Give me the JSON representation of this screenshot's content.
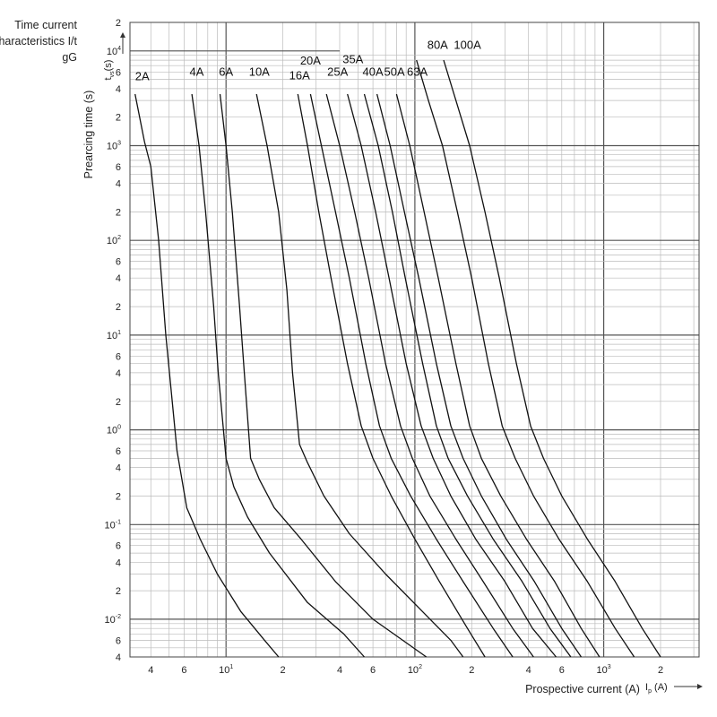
{
  "chart_data": {
    "type": "line",
    "title": [
      "Time current",
      "characteristics I/t",
      "gG"
    ],
    "xlabel": "Prospective current (A)",
    "xunit": "I",
    "xunit_sub": "p",
    "xunit_tail": " (A)",
    "ylabel": "Prearcing time (s)",
    "yunit": "t",
    "yunit_sub": "vs",
    "yunit_tail": "(s)",
    "xscale": "log",
    "yscale": "log",
    "xlim": [
      3.1,
      3200
    ],
    "ylim": [
      0.004,
      20000
    ],
    "grid": true,
    "x_ticks": [
      {
        "v": 4,
        "t": "4"
      },
      {
        "v": 6,
        "t": "6"
      },
      {
        "v": 10,
        "t": "10",
        "e": "1"
      },
      {
        "v": 20,
        "t": "2"
      },
      {
        "v": 40,
        "t": "4"
      },
      {
        "v": 60,
        "t": "6"
      },
      {
        "v": 100,
        "t": "10",
        "e": "2"
      },
      {
        "v": 200,
        "t": "2"
      },
      {
        "v": 400,
        "t": "4"
      },
      {
        "v": 600,
        "t": "6"
      },
      {
        "v": 1000,
        "t": "10",
        "e": "3"
      },
      {
        "v": 2000,
        "t": "2"
      }
    ],
    "y_ticks": [
      {
        "v": 20000,
        "t": "2"
      },
      {
        "v": 10000,
        "t": "10",
        "e": "4"
      },
      {
        "v": 6000,
        "t": "6"
      },
      {
        "v": 4000,
        "t": "4"
      },
      {
        "v": 2000,
        "t": "2"
      },
      {
        "v": 1000,
        "t": "10",
        "e": "3"
      },
      {
        "v": 600,
        "t": "6"
      },
      {
        "v": 400,
        "t": "4"
      },
      {
        "v": 200,
        "t": "2"
      },
      {
        "v": 100,
        "t": "10",
        "e": "2"
      },
      {
        "v": 60,
        "t": "6"
      },
      {
        "v": 40,
        "t": "4"
      },
      {
        "v": 20,
        "t": "2"
      },
      {
        "v": 10,
        "t": "10",
        "e": "1"
      },
      {
        "v": 6,
        "t": "6"
      },
      {
        "v": 4,
        "t": "4"
      },
      {
        "v": 2,
        "t": "2"
      },
      {
        "v": 1,
        "t": "10",
        "e": "0"
      },
      {
        "v": 0.6,
        "t": "6"
      },
      {
        "v": 0.4,
        "t": "4"
      },
      {
        "v": 0.2,
        "t": "2"
      },
      {
        "v": 0.1,
        "t": "10",
        "e": "-1"
      },
      {
        "v": 0.06,
        "t": "6"
      },
      {
        "v": 0.04,
        "t": "4"
      },
      {
        "v": 0.02,
        "t": "2"
      },
      {
        "v": 0.01,
        "t": "10",
        "e": "-2"
      },
      {
        "v": 0.006,
        "t": "6"
      },
      {
        "v": 0.004,
        "t": "4"
      }
    ],
    "series": [
      {
        "name": "2A",
        "points": [
          [
            3.3,
            3500
          ],
          [
            3.7,
            1100
          ],
          [
            4.0,
            600
          ],
          [
            4.4,
            100
          ],
          [
            4.8,
            10
          ],
          [
            5.5,
            0.6
          ],
          [
            6.2,
            0.15
          ],
          [
            7.3,
            0.07
          ],
          [
            9.0,
            0.03
          ],
          [
            12.0,
            0.012
          ],
          [
            16.0,
            0.006
          ],
          [
            19.0,
            0.004
          ]
        ]
      },
      {
        "name": "4A",
        "points": [
          [
            6.6,
            3500
          ],
          [
            7.2,
            1000
          ],
          [
            7.8,
            200
          ],
          [
            8.6,
            20
          ],
          [
            9.1,
            4
          ],
          [
            10.0,
            0.5
          ],
          [
            11.0,
            0.25
          ],
          [
            13.0,
            0.12
          ],
          [
            17.0,
            0.05
          ],
          [
            27.0,
            0.015
          ],
          [
            42.0,
            0.007
          ],
          [
            54.0,
            0.004
          ]
        ]
      },
      {
        "name": "6A",
        "points": [
          [
            9.3,
            3500
          ],
          [
            10.0,
            1000
          ],
          [
            10.8,
            200
          ],
          [
            11.8,
            20
          ],
          [
            12.5,
            4
          ],
          [
            13.5,
            0.5
          ],
          [
            15.0,
            0.3
          ],
          [
            18.0,
            0.15
          ],
          [
            25.0,
            0.07
          ],
          [
            38.0,
            0.025
          ],
          [
            60.0,
            0.01
          ],
          [
            115.0,
            0.004
          ]
        ]
      },
      {
        "name": "10A",
        "points": [
          [
            14.5,
            3500
          ],
          [
            16.5,
            1000
          ],
          [
            19.0,
            200
          ],
          [
            21.0,
            30
          ],
          [
            22.5,
            4
          ],
          [
            24.5,
            0.7
          ],
          [
            27.0,
            0.45
          ],
          [
            33.0,
            0.2
          ],
          [
            45.0,
            0.08
          ],
          [
            70.0,
            0.03
          ],
          [
            110.0,
            0.012
          ],
          [
            155.0,
            0.006
          ],
          [
            180.0,
            0.004
          ]
        ]
      },
      {
        "name": "16A",
        "points": [
          [
            24.0,
            3500
          ],
          [
            27.0,
            1000
          ],
          [
            31.0,
            200
          ],
          [
            36.0,
            40
          ],
          [
            44.0,
            5
          ],
          [
            52.0,
            1.1
          ],
          [
            60.0,
            0.5
          ],
          [
            75.0,
            0.2
          ],
          [
            100.0,
            0.07
          ],
          [
            135.0,
            0.025
          ],
          [
            190.0,
            0.008
          ],
          [
            235.0,
            0.004
          ]
        ]
      },
      {
        "name": "20A",
        "points": [
          [
            28.0,
            3500
          ],
          [
            32.0,
            1000
          ],
          [
            38.0,
            200
          ],
          [
            45.0,
            40
          ],
          [
            55.0,
            5
          ],
          [
            65.0,
            1.1
          ],
          [
            75.0,
            0.5
          ],
          [
            95.0,
            0.2
          ],
          [
            130.0,
            0.07
          ],
          [
            180.0,
            0.025
          ],
          [
            260.0,
            0.008
          ],
          [
            330.0,
            0.004
          ]
        ]
      },
      {
        "name": "25A",
        "points": [
          [
            34.0,
            3500
          ],
          [
            40.0,
            1000
          ],
          [
            48.0,
            200
          ],
          [
            57.0,
            40
          ],
          [
            70.0,
            5
          ],
          [
            84.0,
            1.1
          ],
          [
            97.0,
            0.5
          ],
          [
            120.0,
            0.2
          ],
          [
            165.0,
            0.07
          ],
          [
            230.0,
            0.025
          ],
          [
            330.0,
            0.008
          ],
          [
            425.0,
            0.004
          ]
        ]
      },
      {
        "name": "35A",
        "points": [
          [
            44.0,
            3500
          ],
          [
            52.0,
            1000
          ],
          [
            62.0,
            200
          ],
          [
            73.0,
            40
          ],
          [
            90.0,
            5
          ],
          [
            108.0,
            1.1
          ],
          [
            125.0,
            0.5
          ],
          [
            155.0,
            0.2
          ],
          [
            210.0,
            0.07
          ],
          [
            300.0,
            0.025
          ],
          [
            420.0,
            0.008
          ],
          [
            560.0,
            0.004
          ]
        ]
      },
      {
        "name": "40A",
        "points": [
          [
            54.0,
            3500
          ],
          [
            64.0,
            1000
          ],
          [
            76.0,
            200
          ],
          [
            89.0,
            40
          ],
          [
            110.0,
            5
          ],
          [
            130.0,
            1.1
          ],
          [
            150.0,
            0.5
          ],
          [
            190.0,
            0.2
          ],
          [
            260.0,
            0.07
          ],
          [
            370.0,
            0.025
          ],
          [
            520.0,
            0.008
          ],
          [
            670.0,
            0.004
          ]
        ]
      },
      {
        "name": "50A",
        "points": [
          [
            63.0,
            3500
          ],
          [
            74.0,
            1000
          ],
          [
            88.0,
            200
          ],
          [
            105.0,
            40
          ],
          [
            130.0,
            5
          ],
          [
            155.0,
            1.1
          ],
          [
            180.0,
            0.5
          ],
          [
            225.0,
            0.2
          ],
          [
            305.0,
            0.07
          ],
          [
            430.0,
            0.025
          ],
          [
            600.0,
            0.008
          ],
          [
            760.0,
            0.004
          ]
        ]
      },
      {
        "name": "63A",
        "points": [
          [
            80.0,
            3500
          ],
          [
            94.0,
            1000
          ],
          [
            112.0,
            200
          ],
          [
            133.0,
            40
          ],
          [
            165.0,
            5
          ],
          [
            195.0,
            1.1
          ],
          [
            225.0,
            0.5
          ],
          [
            285.0,
            0.2
          ],
          [
            390.0,
            0.07
          ],
          [
            550.0,
            0.025
          ],
          [
            760.0,
            0.008
          ],
          [
            950.0,
            0.004
          ]
        ]
      },
      {
        "name": "80A",
        "points": [
          [
            102.0,
            8000
          ],
          [
            118.0,
            3000
          ],
          [
            140.0,
            1000
          ],
          [
            168.0,
            200
          ],
          [
            200.0,
            40
          ],
          [
            245.0,
            5
          ],
          [
            290.0,
            1.1
          ],
          [
            340.0,
            0.5
          ],
          [
            425.0,
            0.2
          ],
          [
            580.0,
            0.07
          ],
          [
            820.0,
            0.025
          ],
          [
            1150.0,
            0.008
          ],
          [
            1450.0,
            0.004
          ]
        ]
      },
      {
        "name": "100A",
        "points": [
          [
            142.0,
            8000
          ],
          [
            165.0,
            3000
          ],
          [
            195.0,
            1000
          ],
          [
            235.0,
            200
          ],
          [
            280.0,
            40
          ],
          [
            345.0,
            5
          ],
          [
            410.0,
            1.1
          ],
          [
            480.0,
            0.5
          ],
          [
            600.0,
            0.2
          ],
          [
            820.0,
            0.07
          ],
          [
            1150.0,
            0.025
          ],
          [
            1600.0,
            0.008
          ],
          [
            2000.0,
            0.004
          ]
        ]
      }
    ],
    "label_positions": [
      {
        "name": "2A",
        "x": 3.6,
        "y": 4900
      },
      {
        "name": "4A",
        "x": 7.0,
        "y": 5500
      },
      {
        "name": "6A",
        "x": 10.0,
        "y": 5500
      },
      {
        "name": "10A",
        "x": 15.0,
        "y": 5500
      },
      {
        "name": "16A",
        "x": 24.5,
        "y": 5000
      },
      {
        "name": "20A",
        "x": 28.0,
        "y": 7200
      },
      {
        "name": "25A",
        "x": 39.0,
        "y": 5500
      },
      {
        "name": "35A",
        "x": 47.0,
        "y": 7400
      },
      {
        "name": "40A",
        "x": 60.0,
        "y": 5500
      },
      {
        "name": "50A",
        "x": 78.0,
        "y": 5500
      },
      {
        "name": "63A",
        "x": 103.0,
        "y": 5500
      },
      {
        "name": "80A",
        "x": 132.0,
        "y": 10500
      },
      {
        "name": "100A",
        "x": 190.0,
        "y": 10500
      }
    ]
  }
}
